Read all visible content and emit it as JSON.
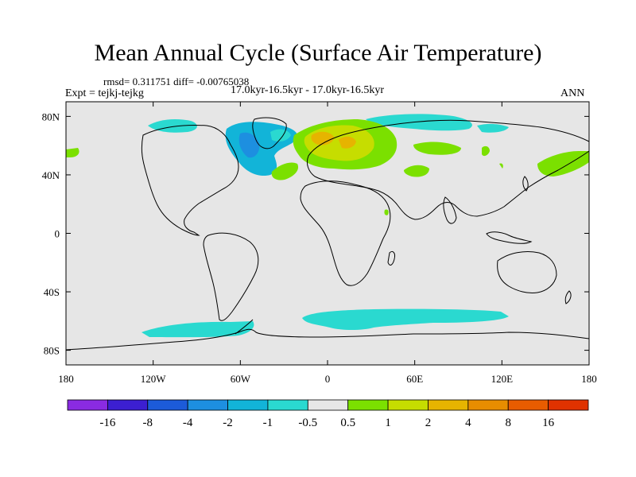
{
  "title": "Mean Annual Cycle (Surface Air Temperature)",
  "stats": "rmsd= 0.311751 diff= -0.00765038",
  "expt": "Expt = tejkj-tejkg",
  "period": "17.0kyr-16.5kyr - 17.0kyr-16.5kyr",
  "season": "ANN",
  "axes": {
    "x_ticks": [
      {
        "value": -180,
        "label": "180"
      },
      {
        "value": -120,
        "label": "120W"
      },
      {
        "value": -60,
        "label": "60W"
      },
      {
        "value": 0,
        "label": "0"
      },
      {
        "value": 60,
        "label": "60E"
      },
      {
        "value": 120,
        "label": "120E"
      },
      {
        "value": 180,
        "label": "180"
      }
    ],
    "y_ticks": [
      {
        "value": 80,
        "label": "80N"
      },
      {
        "value": 40,
        "label": "40N"
      },
      {
        "value": 0,
        "label": "0"
      },
      {
        "value": -40,
        "label": "40S"
      },
      {
        "value": -80,
        "label": "80S"
      }
    ],
    "xlim": [
      -180,
      180
    ],
    "ylim": [
      -90,
      90
    ]
  },
  "colorbar": {
    "colors": [
      "#8a2be2",
      "#3c1fd1",
      "#1c5bd9",
      "#1d8fe0",
      "#12b4d8",
      "#2ad9d0",
      "#e6e6e6",
      "#7be000",
      "#c6dd00",
      "#e6b400",
      "#e88d00",
      "#e85c00",
      "#e03200"
    ],
    "labels": [
      "-16",
      "-8",
      "-4",
      "-2",
      "-1",
      "-0.5",
      "0.5",
      "1",
      "2",
      "4",
      "8",
      "16"
    ]
  },
  "colors": {
    "background": "#e6e6e6",
    "coast": "#000000"
  }
}
